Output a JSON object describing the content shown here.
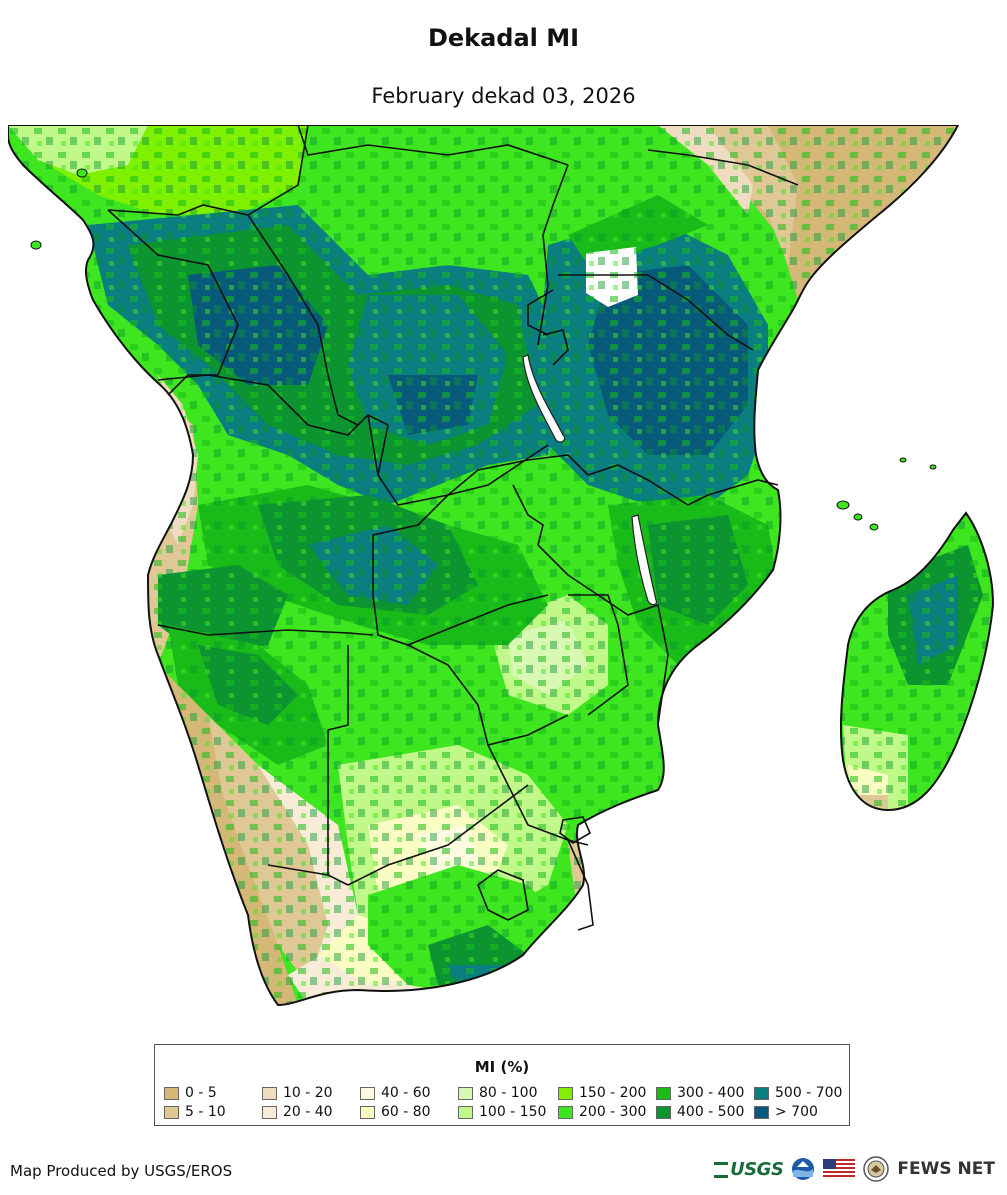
{
  "header": {
    "title": "Dekadal MI",
    "subtitle": "February dekad 03, 2026"
  },
  "legend": {
    "title": "MI (%)",
    "classes": [
      {
        "label": "0 - 5",
        "color": "#d4b877"
      },
      {
        "label": "5 - 10",
        "color": "#e0c896"
      },
      {
        "label": "10 - 20",
        "color": "#f0dcc0"
      },
      {
        "label": "20 - 40",
        "color": "#f8ecd9"
      },
      {
        "label": "40 - 60",
        "color": "#fffbe0"
      },
      {
        "label": "60 - 80",
        "color": "#fafcc3"
      },
      {
        "label": "80 - 100",
        "color": "#d9f8b4"
      },
      {
        "label": "100 - 150",
        "color": "#c0f88a"
      },
      {
        "label": "150 - 200",
        "color": "#7ef000"
      },
      {
        "label": "200 - 300",
        "color": "#3ee620"
      },
      {
        "label": "300 - 400",
        "color": "#18bb18"
      },
      {
        "label": "400 - 500",
        "color": "#0c9430"
      },
      {
        "label": "500 - 700",
        "color": "#0a7e80"
      },
      {
        "label": "> 700",
        "color": "#075a7a"
      }
    ]
  },
  "footer": {
    "credit": "Map Produced by USGS/EROS",
    "logos": {
      "usgs": "USGS",
      "fews": "FEWS NET"
    }
  },
  "icons": [
    "noaa-logo-icon",
    "us-flag-icon",
    "state-dept-seal-icon"
  ]
}
